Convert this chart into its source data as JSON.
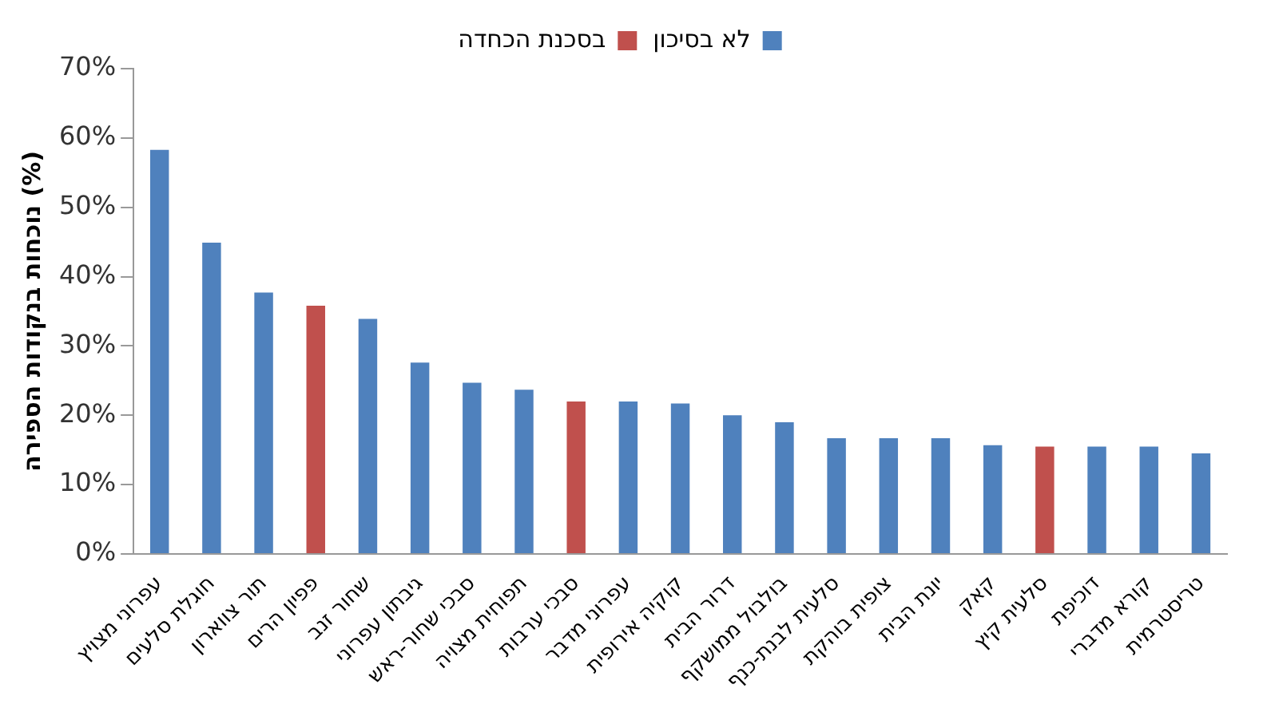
{
  "chart_data": {
    "type": "bar",
    "ylabel": "נוכחות בנקודות הספירה (%)",
    "categories": [
      "עפרוני מצויץ",
      "חוגלת סלעים",
      "תור צווארון",
      "פפיון הרים",
      "שחור זנב",
      "גיבתון עפרוני",
      "סבכי שחור-ראש",
      "תפוחית מצויה",
      "סבכי ערבות",
      "עפרוני מדבר",
      "קוקיה אירופית",
      "דרור הבית",
      "בולבול ממושקף",
      "סלעית לבנת-כנף",
      "צופית בוהקת",
      "יונת הבית",
      "קאק",
      "סלעית קיץ",
      "דוכיפת",
      "קורא מדברי",
      "טריסטרמית"
    ],
    "series": [
      {
        "name": "לא בסיכון",
        "color": "#4f81bd",
        "values": [
          58.3,
          44.9,
          37.7,
          null,
          33.9,
          27.6,
          24.7,
          23.7,
          null,
          22,
          21.7,
          20,
          19,
          16.7,
          16.7,
          16.7,
          15.7,
          null,
          15.5,
          15.5,
          14.5
        ]
      },
      {
        "name": "בסכנת הכחדה",
        "color": "#c0504d",
        "values": [
          null,
          null,
          null,
          35.8,
          null,
          null,
          null,
          null,
          22,
          null,
          null,
          null,
          null,
          null,
          null,
          null,
          null,
          15.5,
          null,
          null,
          null
        ]
      }
    ],
    "ylim": [
      0,
      70
    ],
    "yticks": [
      {
        "value": 0,
        "label": "0%"
      },
      {
        "value": 10,
        "label": "10%"
      },
      {
        "value": 20,
        "label": "20%"
      },
      {
        "value": 30,
        "label": "30%"
      },
      {
        "value": 40,
        "label": "40%"
      },
      {
        "value": 50,
        "label": "50%"
      },
      {
        "value": 60,
        "label": "60%"
      },
      {
        "value": 70,
        "label": "70%"
      }
    ],
    "grid": false,
    "legend": "top"
  }
}
